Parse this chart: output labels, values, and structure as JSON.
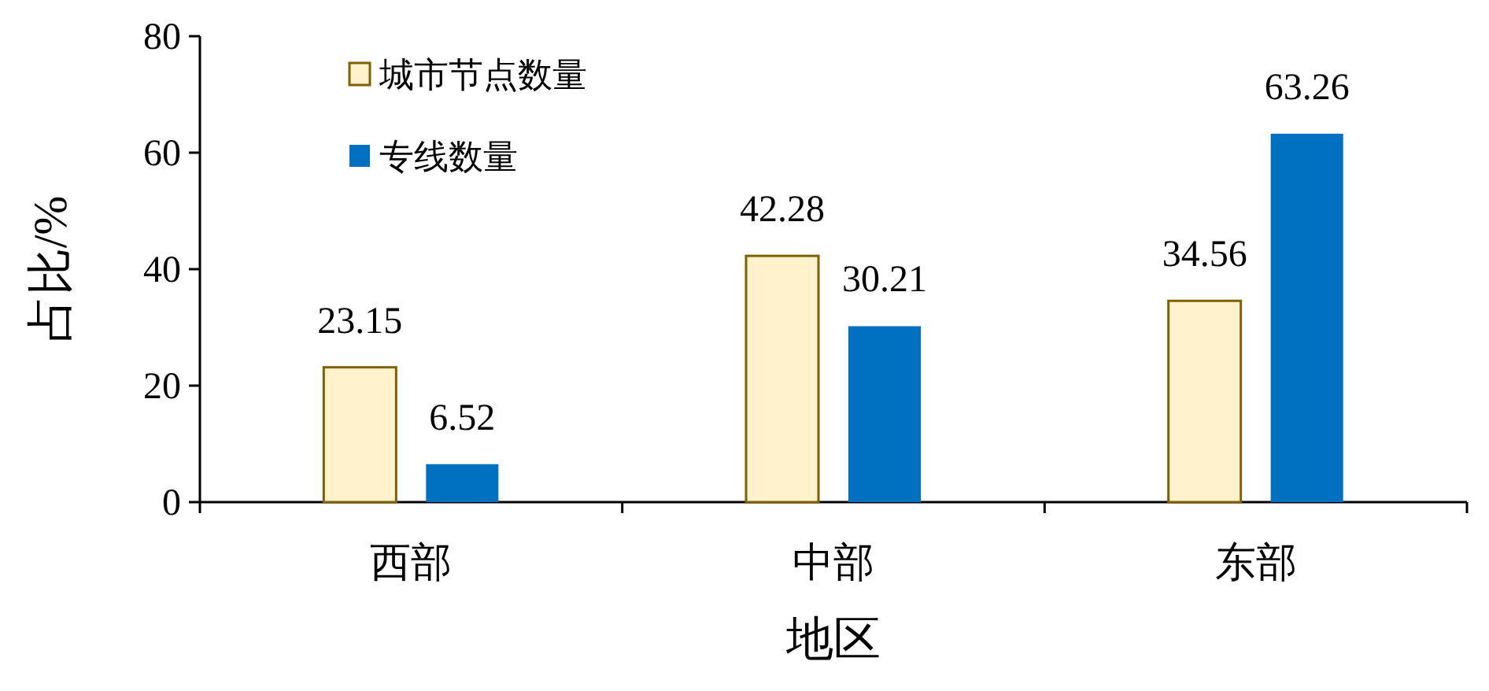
{
  "chart_data": {
    "type": "bar",
    "categories": [
      "西部",
      "中部",
      "东部"
    ],
    "series": [
      {
        "name": "城市节点数量",
        "color": "#fff2cc",
        "values": [
          23.15,
          42.28,
          34.56
        ]
      },
      {
        "name": "专线数量",
        "color": "#0070c0",
        "values": [
          6.52,
          30.21,
          63.26
        ]
      }
    ],
    "xlabel": "地区",
    "ylabel": "占比/%",
    "ylim": [
      0,
      80
    ],
    "yticks": [
      0,
      20,
      40,
      60,
      80
    ],
    "data_labels": true,
    "legend": "top left"
  }
}
